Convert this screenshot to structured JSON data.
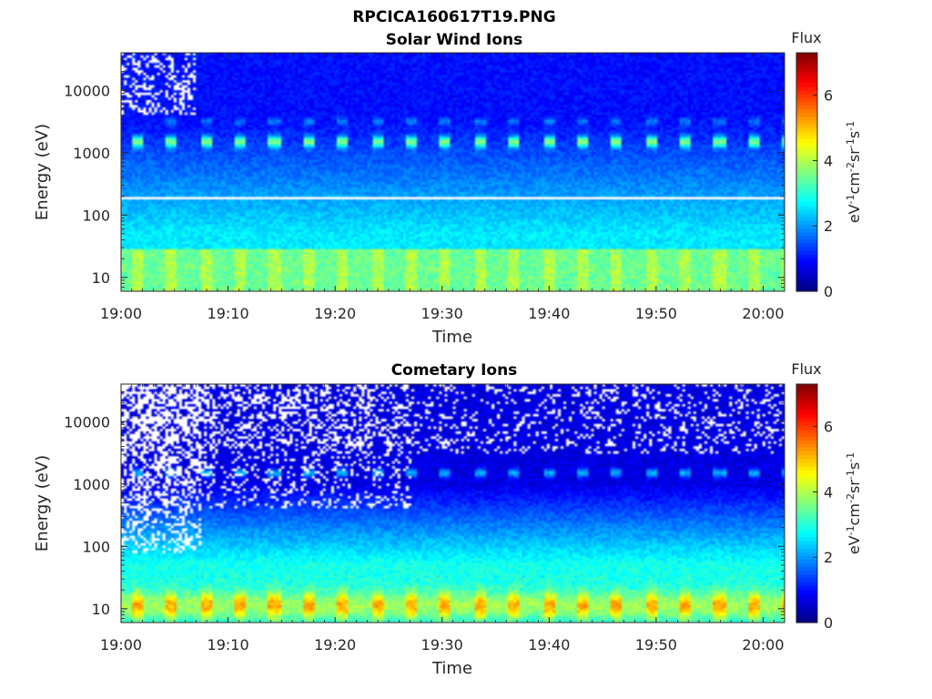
{
  "figure_title": "RPCICA160617T19.PNG",
  "chart_data": [
    {
      "type": "heatmap",
      "title": "Solar Wind Ions",
      "xlabel": "Time",
      "ylabel": "Energy (eV)",
      "x_ticks": [
        "19:00",
        "19:10",
        "19:20",
        "19:30",
        "19:40",
        "19:50",
        "20:00"
      ],
      "xlim": [
        "19:00",
        "20:02"
      ],
      "y_scale": "log",
      "y_ticks": [
        "10",
        "100",
        "1000",
        "10000"
      ],
      "ylim": [
        6,
        40000
      ],
      "colorbar": {
        "title": "Flux",
        "label": "eV-1cm-2sr-1s-1",
        "ticks": [
          "0",
          "2",
          "4",
          "6"
        ],
        "range": [
          0,
          7.3
        ],
        "colormap": "jet"
      },
      "features": {
        "sweep_period_min": 3.2,
        "peak_energy_eV": 1500,
        "peak_flux": 3.6,
        "background_high_energy_flux": 1.0,
        "low_energy_flux": 3.5,
        "gap_line_energy_eV": 200
      }
    },
    {
      "type": "heatmap",
      "title": "Cometary Ions",
      "xlabel": "Time",
      "ylabel": "Energy (eV)",
      "x_ticks": [
        "19:00",
        "19:10",
        "19:20",
        "19:30",
        "19:40",
        "19:50",
        "20:00"
      ],
      "xlim": [
        "19:00",
        "20:02"
      ],
      "y_scale": "log",
      "y_ticks": [
        "10",
        "100",
        "1000",
        "10000"
      ],
      "ylim": [
        6,
        40000
      ],
      "colorbar": {
        "title": "Flux",
        "label": "eV-1cm-2sr-1s-1",
        "ticks": [
          "0",
          "2",
          "4",
          "6"
        ],
        "range": [
          0,
          7.3
        ],
        "colormap": "jet"
      },
      "features": {
        "sweep_period_min": 3.2,
        "peak_energy_eV": 1500,
        "peak_flux": 2.5,
        "background_high_energy_flux": 0.7,
        "low_energy_peak_flux": 5.2,
        "sparse_region_end": "19:27"
      }
    }
  ]
}
